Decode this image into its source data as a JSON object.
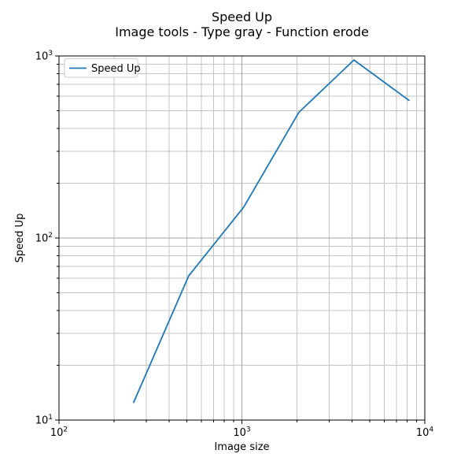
{
  "figure": {
    "title": "Speed Up",
    "subtitle": "Image tools - Type gray - Function erode"
  },
  "chart_data": {
    "type": "line",
    "title": "Speed Up",
    "subtitle": "Image tools - Type gray - Function erode",
    "xlabel": "Image size",
    "ylabel": "Speed Up",
    "x_scale": "log",
    "y_scale": "log",
    "xlim": [
      100,
      10000
    ],
    "ylim": [
      10,
      1000
    ],
    "grid": "both-major-and-minor",
    "legend": {
      "position": "upper left",
      "entries": [
        "Speed Up"
      ]
    },
    "series": [
      {
        "name": "Speed Up",
        "color": "#1f77b4",
        "x": [
          256,
          512,
          1024,
          2048,
          4096,
          8192
        ],
        "y": [
          12.5,
          62,
          148,
          490,
          950,
          570
        ]
      }
    ],
    "x_ticks": [
      {
        "value": 100,
        "base": "10",
        "exp": "2"
      },
      {
        "value": 1000,
        "base": "10",
        "exp": "3"
      },
      {
        "value": 10000,
        "base": "10",
        "exp": "4"
      }
    ],
    "y_ticks": [
      {
        "value": 10,
        "base": "10",
        "exp": "1"
      },
      {
        "value": 100,
        "base": "10",
        "exp": "2"
      },
      {
        "value": 1000,
        "base": "10",
        "exp": "3"
      }
    ]
  },
  "style": {
    "background": "#ffffff",
    "text_color": "#000000",
    "spine_color": "#000000",
    "grid_major_color": "#a6a6a6",
    "grid_minor_color": "#c4c4c4",
    "legend_border_color": "#cccccc",
    "legend_background": "#ffffff",
    "line_color": "#1f77b4"
  }
}
